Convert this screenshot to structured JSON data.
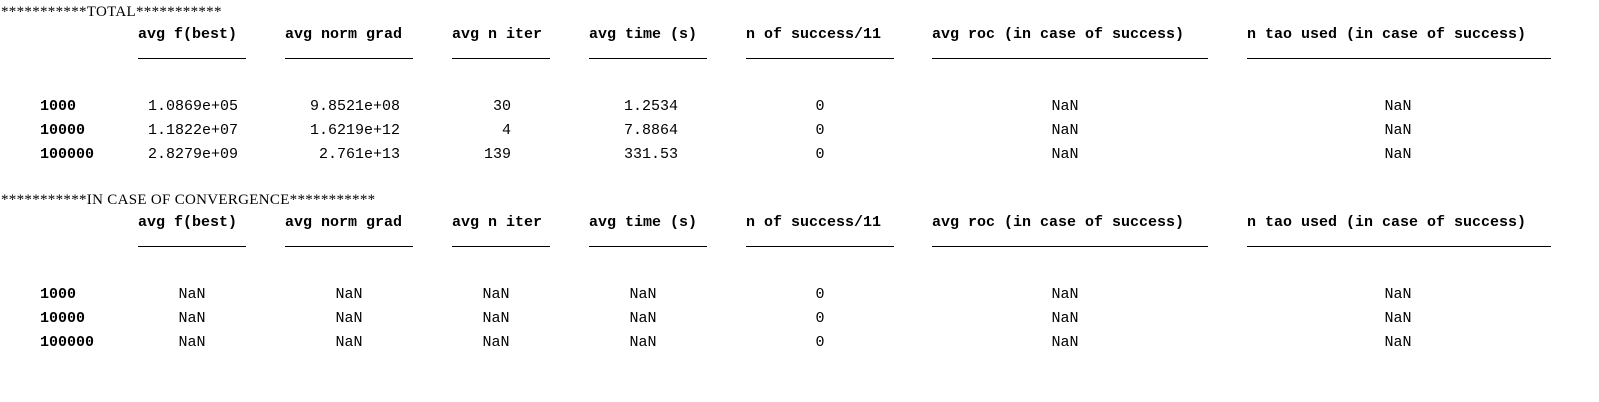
{
  "sections": [
    {
      "title": "***********TOTAL***********",
      "headers": [
        "avg f(best)",
        "avg norm grad",
        "avg n iter",
        "avg time (s)",
        "n of success/11",
        "avg roc (in case of success)",
        "n tao used (in case of success)"
      ],
      "rows": [
        {
          "label": "1000",
          "values": [
            "1.0869e+05",
            "9.8521e+08",
            "30",
            "1.2534",
            "0",
            "NaN",
            "NaN"
          ]
        },
        {
          "label": "10000",
          "values": [
            "1.1822e+07",
            "1.6219e+12",
            "4",
            "7.8864",
            "0",
            "NaN",
            "NaN"
          ]
        },
        {
          "label": "100000",
          "values": [
            "2.8279e+09",
            "2.761e+13",
            "139",
            "331.53",
            "0",
            "NaN",
            "NaN"
          ]
        }
      ]
    },
    {
      "title": "***********IN CASE OF CONVERGENCE***********",
      "headers": [
        "avg f(best)",
        "avg norm grad",
        "avg n iter",
        "avg time (s)",
        "n of success/11",
        "avg roc (in case of success)",
        "n tao used (in case of success)"
      ],
      "rows": [
        {
          "label": "1000",
          "values": [
            "NaN",
            "NaN",
            "NaN",
            "NaN",
            "0",
            "NaN",
            "NaN"
          ]
        },
        {
          "label": "10000",
          "values": [
            "NaN",
            "NaN",
            "NaN",
            "NaN",
            "0",
            "NaN",
            "NaN"
          ]
        },
        {
          "label": "100000",
          "values": [
            "NaN",
            "NaN",
            "NaN",
            "NaN",
            "0",
            "NaN",
            "NaN"
          ]
        }
      ]
    }
  ]
}
